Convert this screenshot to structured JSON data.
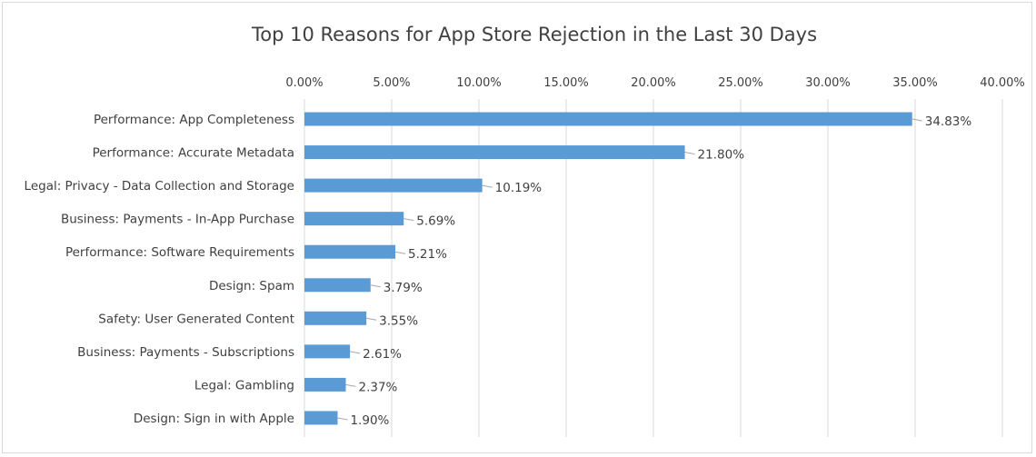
{
  "chart_data": {
    "type": "bar",
    "orientation": "horizontal",
    "title": "Top 10 Reasons for App Store Rejection in the Last 30 Days",
    "xlabel": "",
    "ylabel": "",
    "xlim": [
      0,
      40
    ],
    "x_ticks": [
      "0.00%",
      "5.00%",
      "10.00%",
      "15.00%",
      "20.00%",
      "25.00%",
      "30.00%",
      "35.00%",
      "40.00%"
    ],
    "x_axis_position": "top",
    "grid": true,
    "legend": "none",
    "bar_color": "#5b9bd5",
    "categories": [
      "Performance: App Completeness",
      "Performance: Accurate Metadata",
      "Legal: Privacy - Data Collection and Storage",
      "Business: Payments - In-App Purchase",
      "Performance: Software Requirements",
      "Design: Spam",
      "Safety: User Generated Content",
      "Business: Payments - Subscriptions",
      "Legal: Gambling",
      "Design: Sign in with Apple"
    ],
    "values": [
      34.83,
      21.8,
      10.19,
      5.69,
      5.21,
      3.79,
      3.55,
      2.61,
      2.37,
      1.9
    ],
    "data_labels": [
      "34.83%",
      "21.80%",
      "10.19%",
      "5.69%",
      "5.21%",
      "3.79%",
      "3.55%",
      "2.61%",
      "2.37%",
      "1.90%"
    ]
  }
}
